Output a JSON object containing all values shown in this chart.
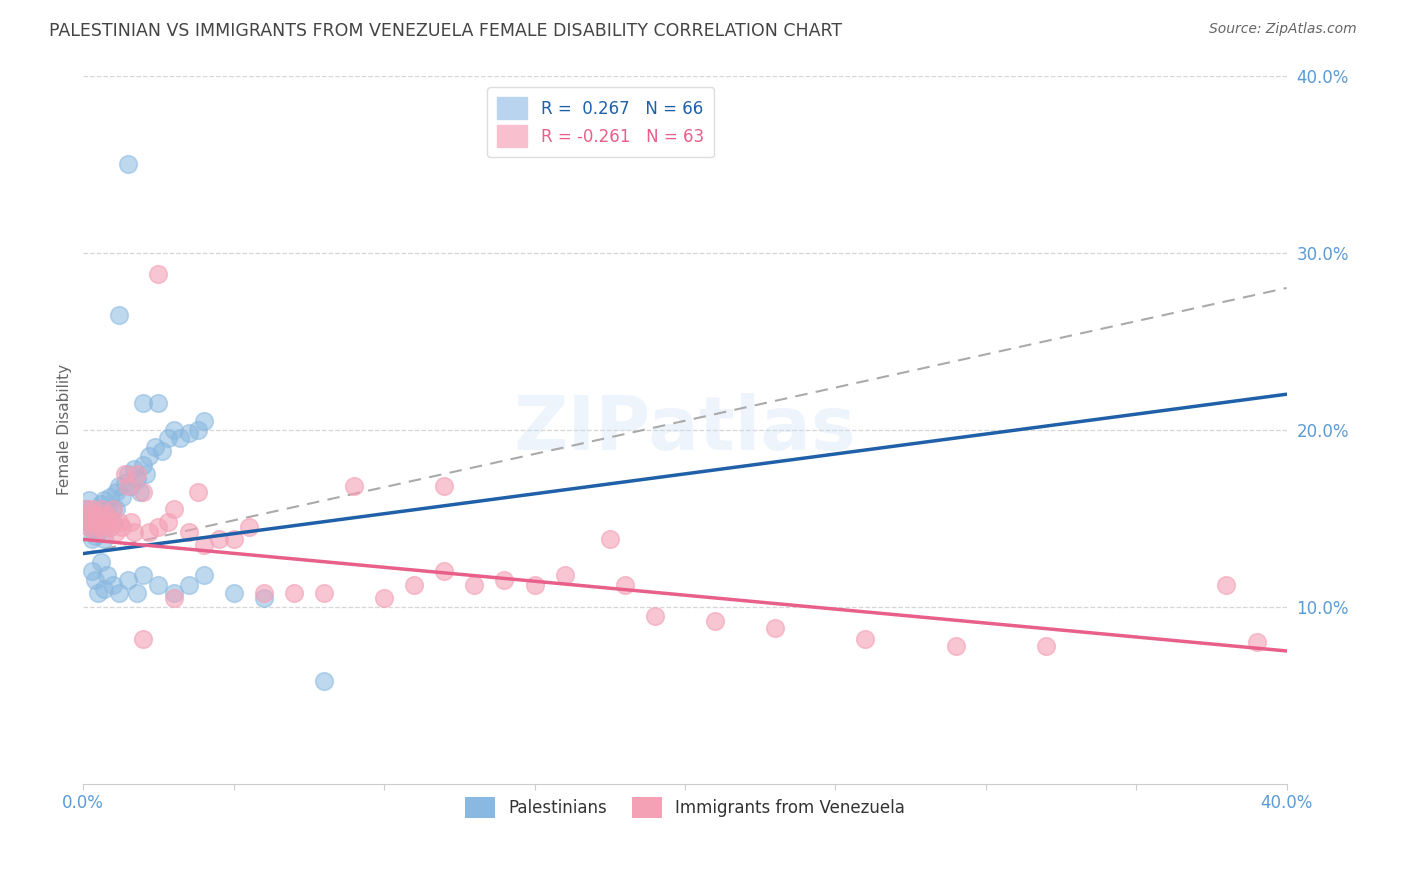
{
  "title": "PALESTINIAN VS IMMIGRANTS FROM VENEZUELA FEMALE DISABILITY CORRELATION CHART",
  "source": "Source: ZipAtlas.com",
  "ylabel": "Female Disability",
  "xmin": 0.0,
  "xmax": 0.4,
  "ymin": 0.0,
  "ymax": 0.4,
  "blue_color": "#89b8e0",
  "pink_color": "#f4a0b5",
  "blue_line_color": "#2060a8",
  "pink_line_color": "#e8608a",
  "background_color": "#ffffff",
  "grid_color": "#cccccc",
  "title_color": "#444444",
  "axis_label_color": "#5b9bd5",
  "watermark": "ZIPatlas",
  "blue_line_start_y": 0.13,
  "blue_line_end_y": 0.22,
  "pink_line_start_y": 0.138,
  "pink_line_end_y": 0.075,
  "dash_line_start_y": 0.13,
  "dash_line_end_y": 0.28,
  "blue_x": [
    0.001,
    0.001,
    0.002,
    0.002,
    0.003,
    0.003,
    0.003,
    0.004,
    0.004,
    0.005,
    0.005,
    0.005,
    0.006,
    0.006,
    0.007,
    0.007,
    0.007,
    0.008,
    0.008,
    0.009,
    0.009,
    0.01,
    0.01,
    0.011,
    0.011,
    0.012,
    0.013,
    0.014,
    0.015,
    0.016,
    0.017,
    0.018,
    0.019,
    0.02,
    0.021,
    0.022,
    0.024,
    0.026,
    0.028,
    0.03,
    0.032,
    0.035,
    0.038,
    0.04,
    0.003,
    0.004,
    0.005,
    0.006,
    0.007,
    0.008,
    0.01,
    0.012,
    0.015,
    0.018,
    0.02,
    0.025,
    0.03,
    0.035,
    0.04,
    0.05,
    0.06,
    0.08,
    0.012,
    0.015,
    0.02,
    0.025
  ],
  "blue_y": [
    0.155,
    0.148,
    0.16,
    0.145,
    0.152,
    0.138,
    0.145,
    0.15,
    0.14,
    0.155,
    0.148,
    0.142,
    0.158,
    0.145,
    0.16,
    0.15,
    0.138,
    0.155,
    0.148,
    0.162,
    0.145,
    0.155,
    0.148,
    0.165,
    0.155,
    0.168,
    0.162,
    0.17,
    0.175,
    0.168,
    0.178,
    0.172,
    0.165,
    0.18,
    0.175,
    0.185,
    0.19,
    0.188,
    0.195,
    0.2,
    0.195,
    0.198,
    0.2,
    0.205,
    0.12,
    0.115,
    0.108,
    0.125,
    0.11,
    0.118,
    0.112,
    0.108,
    0.115,
    0.108,
    0.118,
    0.112,
    0.108,
    0.112,
    0.118,
    0.108,
    0.105,
    0.058,
    0.265,
    0.35,
    0.215,
    0.215
  ],
  "pink_x": [
    0.001,
    0.001,
    0.002,
    0.002,
    0.003,
    0.003,
    0.004,
    0.004,
    0.005,
    0.005,
    0.006,
    0.006,
    0.007,
    0.007,
    0.008,
    0.008,
    0.009,
    0.01,
    0.01,
    0.011,
    0.012,
    0.013,
    0.014,
    0.015,
    0.016,
    0.017,
    0.018,
    0.02,
    0.022,
    0.025,
    0.028,
    0.03,
    0.035,
    0.038,
    0.04,
    0.045,
    0.05,
    0.055,
    0.06,
    0.07,
    0.08,
    0.09,
    0.1,
    0.11,
    0.12,
    0.13,
    0.14,
    0.15,
    0.16,
    0.175,
    0.19,
    0.21,
    0.23,
    0.26,
    0.29,
    0.32,
    0.38,
    0.39,
    0.18,
    0.02,
    0.025,
    0.03,
    0.12
  ],
  "pink_y": [
    0.148,
    0.155,
    0.152,
    0.145,
    0.148,
    0.155,
    0.142,
    0.15,
    0.148,
    0.152,
    0.145,
    0.155,
    0.148,
    0.142,
    0.152,
    0.148,
    0.145,
    0.155,
    0.148,
    0.142,
    0.148,
    0.145,
    0.175,
    0.168,
    0.148,
    0.142,
    0.175,
    0.165,
    0.142,
    0.145,
    0.148,
    0.155,
    0.142,
    0.165,
    0.135,
    0.138,
    0.138,
    0.145,
    0.108,
    0.108,
    0.108,
    0.168,
    0.105,
    0.112,
    0.12,
    0.112,
    0.115,
    0.112,
    0.118,
    0.138,
    0.095,
    0.092,
    0.088,
    0.082,
    0.078,
    0.078,
    0.112,
    0.08,
    0.112,
    0.082,
    0.288,
    0.105,
    0.168
  ]
}
